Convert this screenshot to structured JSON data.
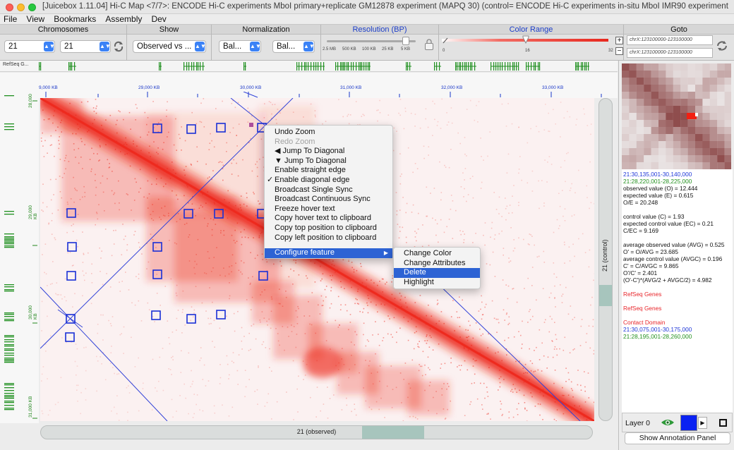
{
  "window": {
    "title": "[Juicebox 1.11.04] Hi-C Map <7/7>:  ENCODE Hi-C experiments MboI primary+replicate GM12878 experiment (MAPQ 30)  (control=  ENCODE Hi-C experiments in-situ MboI IMR90 experiment)"
  },
  "menubar": [
    "File",
    "View",
    "Bookmarks",
    "Assembly",
    "Dev"
  ],
  "toolbar": {
    "chromosomes": {
      "title": "Chromosomes",
      "chr1": "21",
      "chr2": "21"
    },
    "show": {
      "title": "Show",
      "value": "Observed vs ..."
    },
    "normalization": {
      "title": "Normalization",
      "value1": "Bal...",
      "value2": "Bal..."
    },
    "resolution": {
      "title": "Resolution (BP)",
      "ticks": [
        "2.5 MB",
        "500 KB",
        "100 KB",
        "25 KB",
        "5 KB"
      ],
      "selected_index": 4
    },
    "color_range": {
      "title": "Color Range",
      "min": "0",
      "mid": "16",
      "max": "32",
      "plus": "+",
      "minus": "−",
      "slider_value": 0.38
    },
    "goto": {
      "title": "Goto",
      "field1": "chrX:123100000-123100000",
      "field2": "chrX:123100000-123100000"
    }
  },
  "track": {
    "label": "RefSeq G..."
  },
  "x_ticks": [
    "9,000 KB",
    "29,000 KB",
    "30,000 KB",
    "31,000 KB",
    "32,000 KB",
    "33,000 KB"
  ],
  "y_ticks": [
    "28,000",
    "29,000 KB",
    "30,000 KB",
    "31,000 KB"
  ],
  "scroll": {
    "vertical_label": "21 (control)",
    "horizontal_label": "21 (observed)"
  },
  "context_menu": {
    "items": [
      {
        "label": "Undo Zoom",
        "disabled": false
      },
      {
        "label": "Redo Zoom",
        "disabled": true
      },
      {
        "label": "◀  Jump To Diagonal",
        "disabled": false
      },
      {
        "label": "▼  Jump To Diagonal",
        "disabled": false
      },
      {
        "label": "Enable straight edge",
        "disabled": false
      },
      {
        "label": "Enable diagonal edge",
        "disabled": false,
        "checked": true
      },
      {
        "label": "Broadcast Single Sync",
        "disabled": false
      },
      {
        "label": "Broadcast Continuous Sync",
        "disabled": false
      },
      {
        "label": "Freeze hover text",
        "disabled": false
      },
      {
        "label": "Copy hover text to clipboard",
        "disabled": false
      },
      {
        "label": "Copy top position to clipboard",
        "disabled": false
      },
      {
        "label": "Copy left position to clipboard",
        "disabled": false
      },
      {
        "label": "Configure feature",
        "disabled": false,
        "submenu": true,
        "highlighted": true
      }
    ],
    "check_glyph": "✓",
    "submenu_glyph": "▶"
  },
  "submenu": {
    "items": [
      {
        "label": "Change Color",
        "highlighted": false
      },
      {
        "label": "Change Attributes",
        "highlighted": false
      },
      {
        "label": "Delete",
        "highlighted": true
      },
      {
        "label": "Highlight",
        "highlighted": false
      }
    ]
  },
  "info": {
    "lines": [
      {
        "text": "21:30,135,001-30,140,000",
        "color": "b"
      },
      {
        "text": "21:28,220,001-28,225,000",
        "color": "g"
      },
      {
        "text": "observed value (O) = 12.444",
        "color": ""
      },
      {
        "text": "expected value (E) = 0.615",
        "color": ""
      },
      {
        "text": "O/E = 20.248",
        "color": ""
      },
      {
        "text": "",
        "color": "sp"
      },
      {
        "text": "control value (C) = 1.93",
        "color": ""
      },
      {
        "text": "expected control value (EC) = 0.21",
        "color": ""
      },
      {
        "text": "C/EC = 9.169",
        "color": ""
      },
      {
        "text": "",
        "color": "sp"
      },
      {
        "text": "average observed value (AVG) = 0.525",
        "color": ""
      },
      {
        "text": "O' = O/AVG = 23.685",
        "color": ""
      },
      {
        "text": "average control value (AVGC) = 0.196",
        "color": ""
      },
      {
        "text": "C' = C/AVGC = 9.865",
        "color": ""
      },
      {
        "text": "O'/C' = 2.401",
        "color": ""
      },
      {
        "text": "(O'-C')*(AVG/2 + AVGC/2) = 4.982",
        "color": ""
      },
      {
        "text": "",
        "color": "sp"
      },
      {
        "text": "RefSeq Genes",
        "color": "r"
      },
      {
        "text": "",
        "color": "sp"
      },
      {
        "text": "RefSeq Genes",
        "color": "r"
      },
      {
        "text": "",
        "color": "sp"
      },
      {
        "text": "Contact Domain",
        "color": "r"
      },
      {
        "text": "21:30,075,001-30,175,000",
        "color": "b"
      },
      {
        "text": "21:28,195,001-28,260,000",
        "color": "g"
      }
    ]
  },
  "layer": {
    "label": "Layer 0",
    "color": "#0a22f2",
    "play_glyph": "▶"
  },
  "annotation_button": "Show Annotation Panel",
  "colors": {
    "heat": "#ee2a1e",
    "feature_box": "#1a2fd6",
    "guide_line": "#3142d8"
  }
}
